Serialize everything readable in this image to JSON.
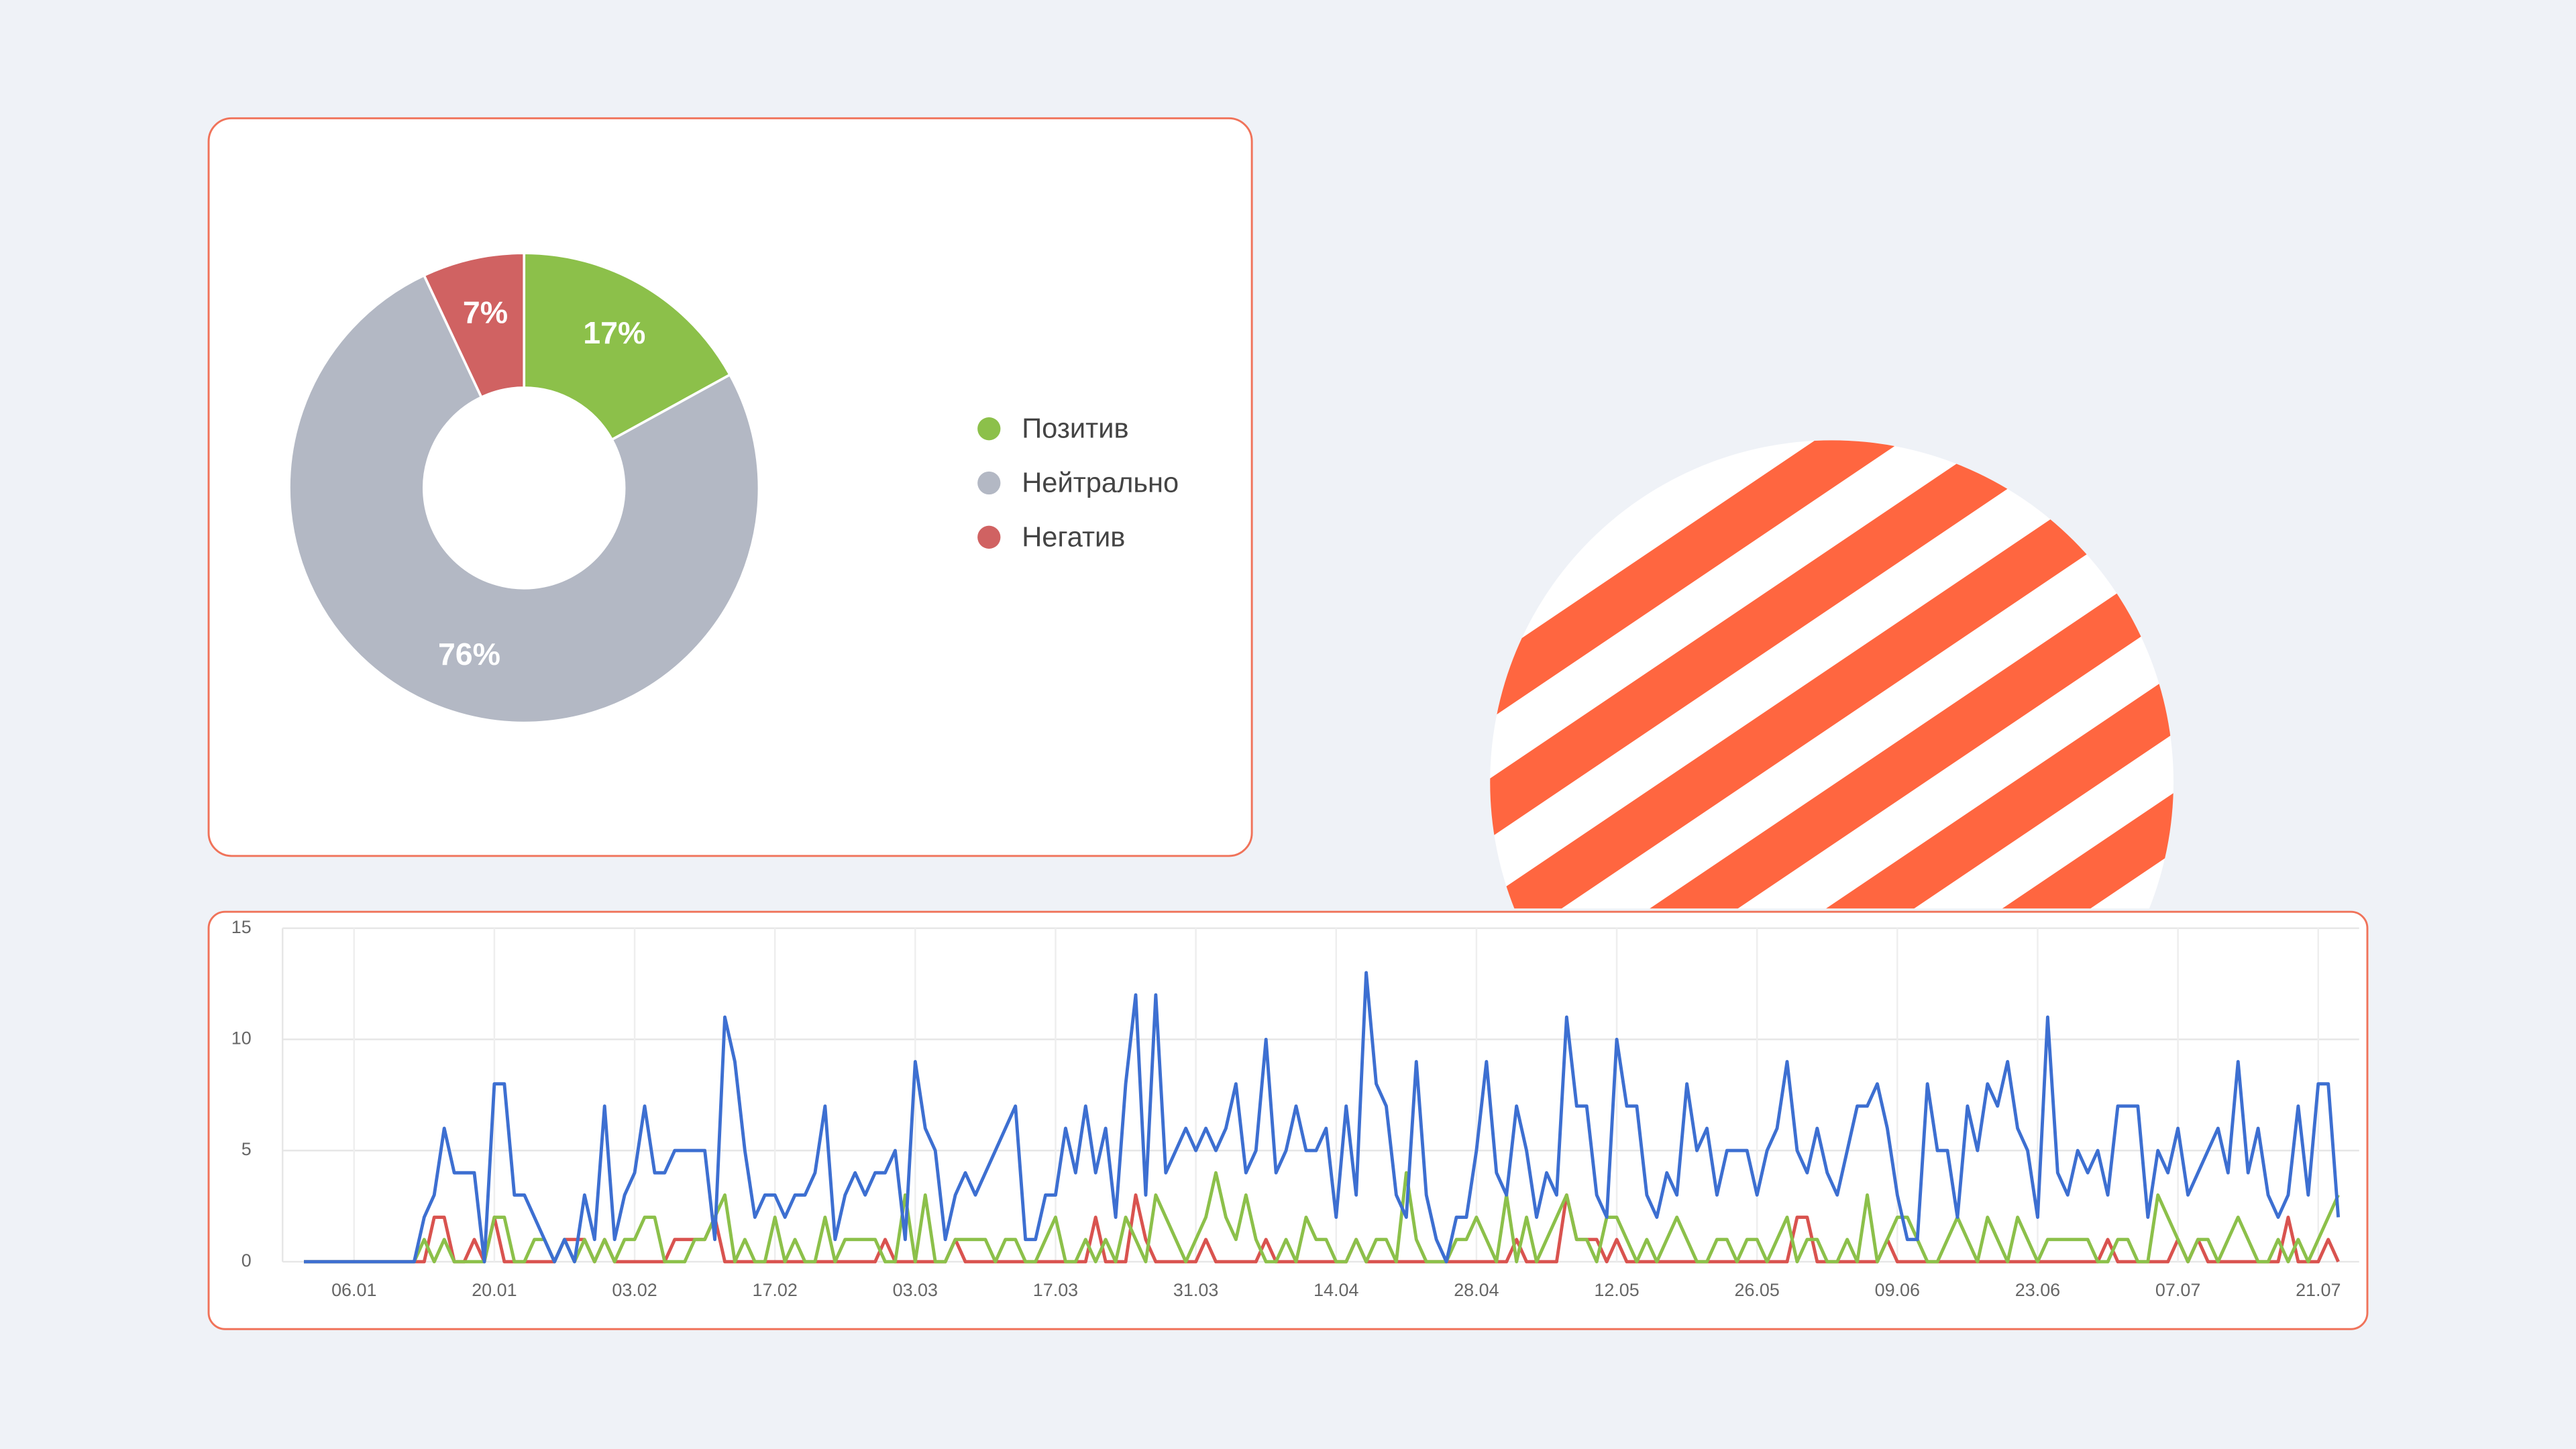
{
  "chart_data": [
    {
      "type": "pie",
      "categories": [
        "Позитив",
        "Нейтрально",
        "Негатив"
      ],
      "values": [
        17,
        76,
        7
      ],
      "value_labels": [
        "17%",
        "76%",
        "7%"
      ],
      "colors": [
        "#8cc04a",
        "#b3b8c4",
        "#d06262"
      ],
      "donut": true
    },
    {
      "type": "line",
      "x": [
        "01.01",
        "02.01",
        "03.01",
        "04.01",
        "05.01",
        "06.01",
        "07.01",
        "08.01",
        "09.01",
        "10.01",
        "11.01",
        "12.01",
        "13.01",
        "14.01",
        "15.01",
        "16.01",
        "17.01",
        "18.01",
        "19.01",
        "20.01",
        "21.01",
        "22.01",
        "23.01",
        "24.01",
        "25.01",
        "26.01",
        "27.01",
        "28.01",
        "29.01",
        "30.01",
        "31.01",
        "01.02",
        "02.02",
        "03.02",
        "04.02",
        "05.02",
        "06.02",
        "07.02",
        "08.02",
        "09.02",
        "10.02",
        "11.02",
        "12.02",
        "13.02",
        "14.02",
        "15.02",
        "16.02",
        "17.02",
        "18.02",
        "19.02",
        "20.02",
        "21.02",
        "22.02",
        "23.02",
        "24.02",
        "25.02",
        "26.02",
        "27.02",
        "28.02",
        "01.03",
        "02.03",
        "03.03",
        "04.03",
        "05.03",
        "06.03",
        "07.03",
        "08.03",
        "09.03",
        "10.03",
        "11.03",
        "12.03",
        "13.03",
        "14.03",
        "15.03",
        "16.03",
        "17.03",
        "18.03",
        "19.03",
        "20.03",
        "21.03",
        "22.03",
        "23.03",
        "24.03",
        "25.03",
        "26.03",
        "27.03",
        "28.03",
        "29.03",
        "30.03",
        "31.03",
        "01.04",
        "02.04",
        "03.04",
        "04.04",
        "05.04",
        "06.04",
        "07.04",
        "08.04",
        "09.04",
        "10.04",
        "11.04",
        "12.04",
        "13.04",
        "14.04",
        "15.04",
        "16.04",
        "17.04",
        "18.04",
        "19.04",
        "20.04",
        "21.04",
        "22.04",
        "23.04",
        "24.04",
        "25.04",
        "26.04",
        "27.04",
        "28.04",
        "29.04",
        "30.04",
        "01.05",
        "02.05",
        "03.05",
        "04.05",
        "05.05",
        "06.05",
        "07.05",
        "08.05",
        "09.05",
        "10.05",
        "11.05",
        "12.05",
        "13.05",
        "14.05",
        "15.05",
        "16.05",
        "17.05",
        "18.05",
        "19.05",
        "20.05",
        "21.05",
        "22.05",
        "23.05",
        "24.05",
        "25.05",
        "26.05",
        "27.05",
        "28.05",
        "29.05",
        "30.05",
        "31.05",
        "01.06",
        "02.06",
        "03.06",
        "04.06",
        "05.06",
        "06.06",
        "07.06",
        "08.06",
        "09.06",
        "10.06",
        "11.06",
        "12.06",
        "13.06",
        "14.06",
        "15.06",
        "16.06",
        "17.06",
        "18.06",
        "19.06",
        "20.06",
        "21.06",
        "22.06",
        "23.06",
        "24.06",
        "25.06",
        "26.06",
        "27.06",
        "28.06",
        "29.06",
        "30.06",
        "01.07",
        "02.07",
        "03.07",
        "04.07",
        "05.07",
        "06.07",
        "07.07",
        "08.07",
        "09.07",
        "10.07",
        "11.07",
        "12.07",
        "13.07",
        "14.07",
        "15.07",
        "16.07",
        "17.07",
        "18.07",
        "19.07",
        "20.07",
        "21.07",
        "22.07",
        "23.07"
      ],
      "xticks": [
        "06.01",
        "20.01",
        "03.02",
        "17.02",
        "03.03",
        "17.03",
        "31.03",
        "14.04",
        "28.04",
        "12.05",
        "26.05",
        "09.06",
        "23.06",
        "07.07",
        "21.07"
      ],
      "ylim": [
        0,
        15
      ],
      "yticks": [
        0,
        5,
        10,
        15
      ],
      "grid": true,
      "series": [
        {
          "color": "#3d6fd1",
          "values": [
            0,
            0,
            0,
            0,
            0,
            0,
            0,
            0,
            0,
            0,
            0,
            0,
            2,
            3,
            6,
            4,
            4,
            4,
            0,
            8,
            8,
            3,
            3,
            2,
            1,
            0,
            1,
            0,
            3,
            1,
            7,
            1,
            3,
            4,
            7,
            4,
            4,
            5,
            5,
            5,
            5,
            1,
            11,
            9,
            5,
            2,
            3,
            3,
            2,
            3,
            3,
            4,
            7,
            1,
            3,
            4,
            3,
            4,
            4,
            5,
            1,
            9,
            6,
            5,
            1,
            3,
            4,
            3,
            4,
            5,
            6,
            7,
            1,
            1,
            3,
            3,
            6,
            4,
            7,
            4,
            6,
            2,
            8,
            12,
            3,
            12,
            4,
            5,
            6,
            5,
            6,
            5,
            6,
            8,
            4,
            5,
            10,
            4,
            5,
            7,
            5,
            5,
            6,
            2,
            7,
            3,
            13,
            8,
            7,
            3,
            2,
            9,
            3,
            1,
            0,
            2,
            2,
            5,
            9,
            4,
            3,
            7,
            5,
            2,
            4,
            3,
            11,
            7,
            7,
            3,
            2,
            10,
            7,
            7,
            3,
            2,
            4,
            3,
            8,
            5,
            6,
            3,
            5,
            5,
            5,
            3,
            5,
            6,
            9,
            5,
            4,
            6,
            4,
            3,
            5,
            7,
            7,
            8,
            6,
            3,
            1,
            1,
            8,
            5,
            5,
            2,
            7,
            5,
            8,
            7,
            9,
            6,
            5,
            2,
            11,
            4,
            3,
            5,
            4,
            5,
            3,
            7,
            7,
            7,
            2,
            5,
            4,
            6,
            3,
            4,
            5,
            6,
            4,
            9,
            4,
            6,
            3,
            2,
            3,
            7,
            3,
            8,
            8,
            2
          ]
        },
        {
          "color": "#8cc04a",
          "values": [
            0,
            0,
            0,
            0,
            0,
            0,
            0,
            0,
            0,
            0,
            0,
            0,
            1,
            0,
            1,
            0,
            0,
            0,
            0,
            2,
            2,
            0,
            0,
            1,
            1,
            0,
            1,
            0,
            1,
            0,
            1,
            0,
            1,
            1,
            2,
            2,
            0,
            0,
            0,
            1,
            1,
            2,
            3,
            0,
            1,
            0,
            0,
            2,
            0,
            1,
            0,
            0,
            2,
            0,
            1,
            1,
            1,
            1,
            0,
            0,
            3,
            0,
            3,
            0,
            0,
            1,
            1,
            1,
            1,
            0,
            1,
            1,
            0,
            0,
            1,
            2,
            0,
            0,
            1,
            0,
            1,
            0,
            2,
            1,
            0,
            3,
            2,
            1,
            0,
            1,
            2,
            4,
            2,
            1,
            3,
            1,
            0,
            0,
            1,
            0,
            2,
            1,
            1,
            0,
            0,
            1,
            0,
            1,
            1,
            0,
            4,
            1,
            0,
            0,
            0,
            1,
            1,
            2,
            1,
            0,
            3,
            0,
            2,
            0,
            1,
            2,
            3,
            1,
            1,
            0,
            2,
            2,
            1,
            0,
            1,
            0,
            1,
            2,
            1,
            0,
            0,
            1,
            1,
            0,
            1,
            1,
            0,
            1,
            2,
            0,
            1,
            1,
            0,
            0,
            1,
            0,
            3,
            0,
            1,
            2,
            2,
            1,
            0,
            0,
            1,
            2,
            1,
            0,
            2,
            1,
            0,
            2,
            1,
            0,
            1,
            1,
            1,
            1,
            1,
            0,
            0,
            1,
            1,
            0,
            0,
            3,
            2,
            1,
            0,
            1,
            1,
            0,
            1,
            2,
            1,
            0,
            0,
            1,
            0,
            1,
            0,
            1,
            2,
            3
          ]
        },
        {
          "color": "#d9534f",
          "values": [
            0,
            0,
            0,
            0,
            0,
            0,
            0,
            0,
            0,
            0,
            0,
            0,
            0,
            2,
            2,
            0,
            0,
            1,
            0,
            2,
            0,
            0,
            0,
            0,
            0,
            0,
            1,
            1,
            1,
            0,
            1,
            0,
            0,
            0,
            0,
            0,
            0,
            1,
            1,
            1,
            1,
            2,
            0,
            0,
            0,
            0,
            0,
            0,
            0,
            0,
            0,
            0,
            0,
            0,
            0,
            0,
            0,
            0,
            1,
            0,
            0,
            0,
            0,
            0,
            0,
            1,
            0,
            0,
            0,
            0,
            0,
            0,
            0,
            0,
            0,
            0,
            0,
            0,
            0,
            2,
            0,
            0,
            0,
            3,
            1,
            0,
            0,
            0,
            0,
            0,
            1,
            0,
            0,
            0,
            0,
            0,
            1,
            0,
            0,
            0,
            0,
            0,
            0,
            0,
            0,
            1,
            0,
            0,
            0,
            0,
            0,
            0,
            0,
            0,
            0,
            0,
            0,
            0,
            0,
            0,
            0,
            1,
            0,
            0,
            0,
            0,
            3,
            1,
            1,
            1,
            0,
            1,
            0,
            0,
            0,
            0,
            0,
            0,
            0,
            0,
            0,
            0,
            0,
            0,
            0,
            0,
            0,
            0,
            0,
            2,
            2,
            0,
            0,
            0,
            0,
            0,
            0,
            0,
            1,
            0,
            0,
            0,
            0,
            0,
            0,
            0,
            0,
            0,
            0,
            0,
            0,
            0,
            0,
            0,
            0,
            0,
            0,
            0,
            0,
            0,
            1,
            0,
            0,
            0,
            0,
            0,
            0,
            1,
            0,
            1,
            0,
            0,
            0,
            0,
            0,
            0,
            0,
            0,
            2,
            0,
            0,
            0,
            1,
            0
          ]
        }
      ]
    }
  ]
}
